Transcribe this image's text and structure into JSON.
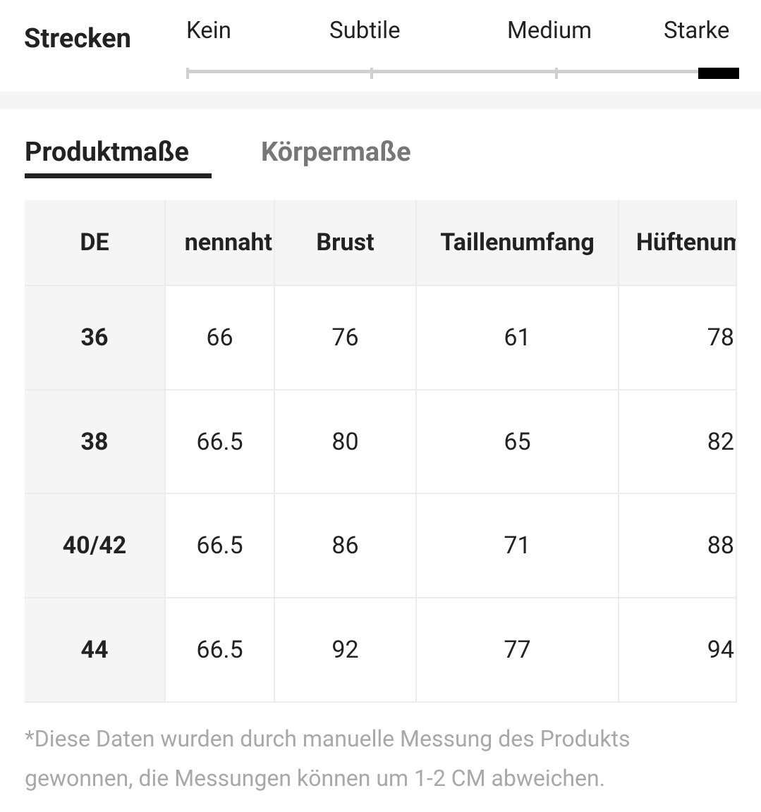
{
  "stretch": {
    "label": "Strecken",
    "levels": [
      "Kein",
      "Subtile",
      "Medium",
      "Starke"
    ]
  },
  "tabs": [
    "Produktmaße",
    "Körpermaße"
  ],
  "table": {
    "headers": [
      "DE",
      "nennaht",
      "Brust",
      "Taillenumfang",
      "Hüftenum"
    ],
    "rows": [
      [
        "36",
        "66",
        "76",
        "61",
        "78"
      ],
      [
        "38",
        "66.5",
        "80",
        "65",
        "82"
      ],
      [
        "40/42",
        "66.5",
        "86",
        "71",
        "88"
      ],
      [
        "44",
        "66.5",
        "92",
        "77",
        "94"
      ]
    ]
  },
  "note": "*Diese Daten wurden durch manuelle Messung des Produkts gewonnen, die Messungen können um 1-2 CM abweichen."
}
